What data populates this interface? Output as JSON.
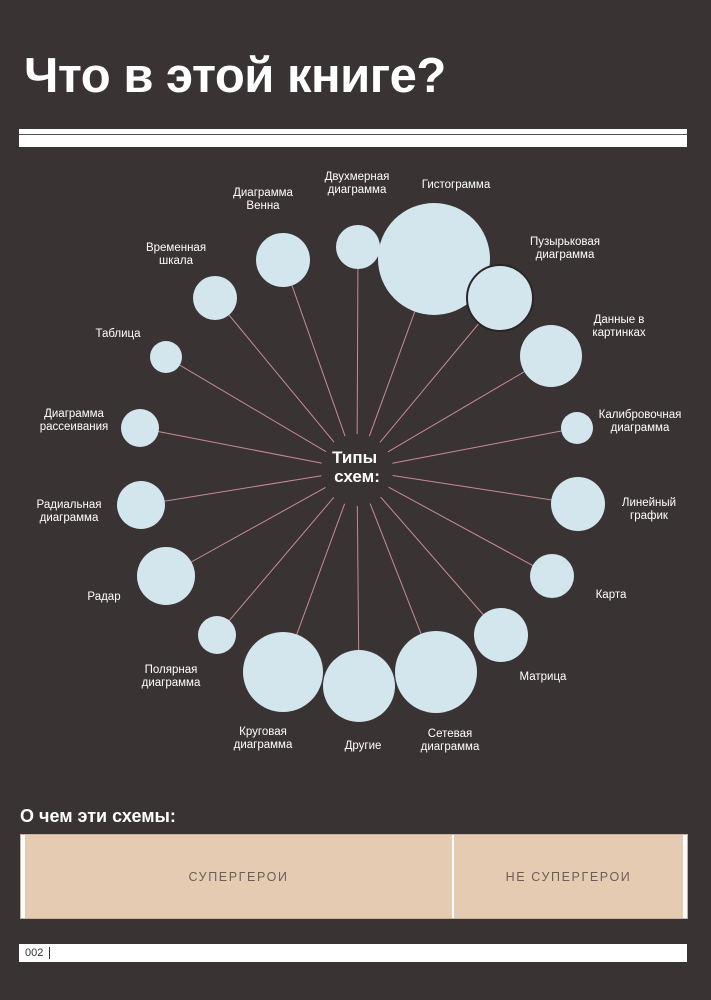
{
  "title": "Что в этой книге?",
  "center_label": [
    "Типы",
    "схем:"
  ],
  "diagram_types": [
    {
      "id": "venn",
      "lines": [
        "Диаграмма",
        "Венна"
      ]
    },
    {
      "id": "dvumernaya",
      "lines": [
        "Двухмерная",
        "диаграмма"
      ]
    },
    {
      "id": "histogram",
      "lines": [
        "Гистограмма"
      ]
    },
    {
      "id": "bubble",
      "lines": [
        "Пузырьковая",
        "диаграмма"
      ]
    },
    {
      "id": "pictures",
      "lines": [
        "Данные в",
        "картинках"
      ]
    },
    {
      "id": "calibration",
      "lines": [
        "Калибровочная",
        "диаграмма"
      ]
    },
    {
      "id": "line",
      "lines": [
        "Линейный",
        "график"
      ]
    },
    {
      "id": "map",
      "lines": [
        "Карта"
      ]
    },
    {
      "id": "matrix",
      "lines": [
        "Матрица"
      ]
    },
    {
      "id": "network",
      "lines": [
        "Сетевая",
        "диаграмма"
      ]
    },
    {
      "id": "other",
      "lines": [
        "Другие"
      ]
    },
    {
      "id": "pie",
      "lines": [
        "Круговая",
        "диаграмма"
      ]
    },
    {
      "id": "polar",
      "lines": [
        "Полярная",
        "диаграмма"
      ]
    },
    {
      "id": "radar",
      "lines": [
        "Радар"
      ]
    },
    {
      "id": "radial",
      "lines": [
        "Радиальная",
        "диаграмма"
      ]
    },
    {
      "id": "scatter",
      "lines": [
        "Диаграмма",
        "рассеивания"
      ]
    },
    {
      "id": "table",
      "lines": [
        "Таблица"
      ]
    },
    {
      "id": "timeline",
      "lines": [
        "Временная",
        "шкала"
      ]
    }
  ],
  "subjects_heading": "О чем эти схемы:",
  "subjects": {
    "left": "СУПЕРГЕРОИ",
    "right": "НЕ СУПЕРГЕРОИ"
  },
  "page_number": "002",
  "colors": {
    "background": "#3a3333",
    "bubble": "#d3e6ee",
    "connector": "#c98a96",
    "category_fill": "#e6cbb3"
  }
}
